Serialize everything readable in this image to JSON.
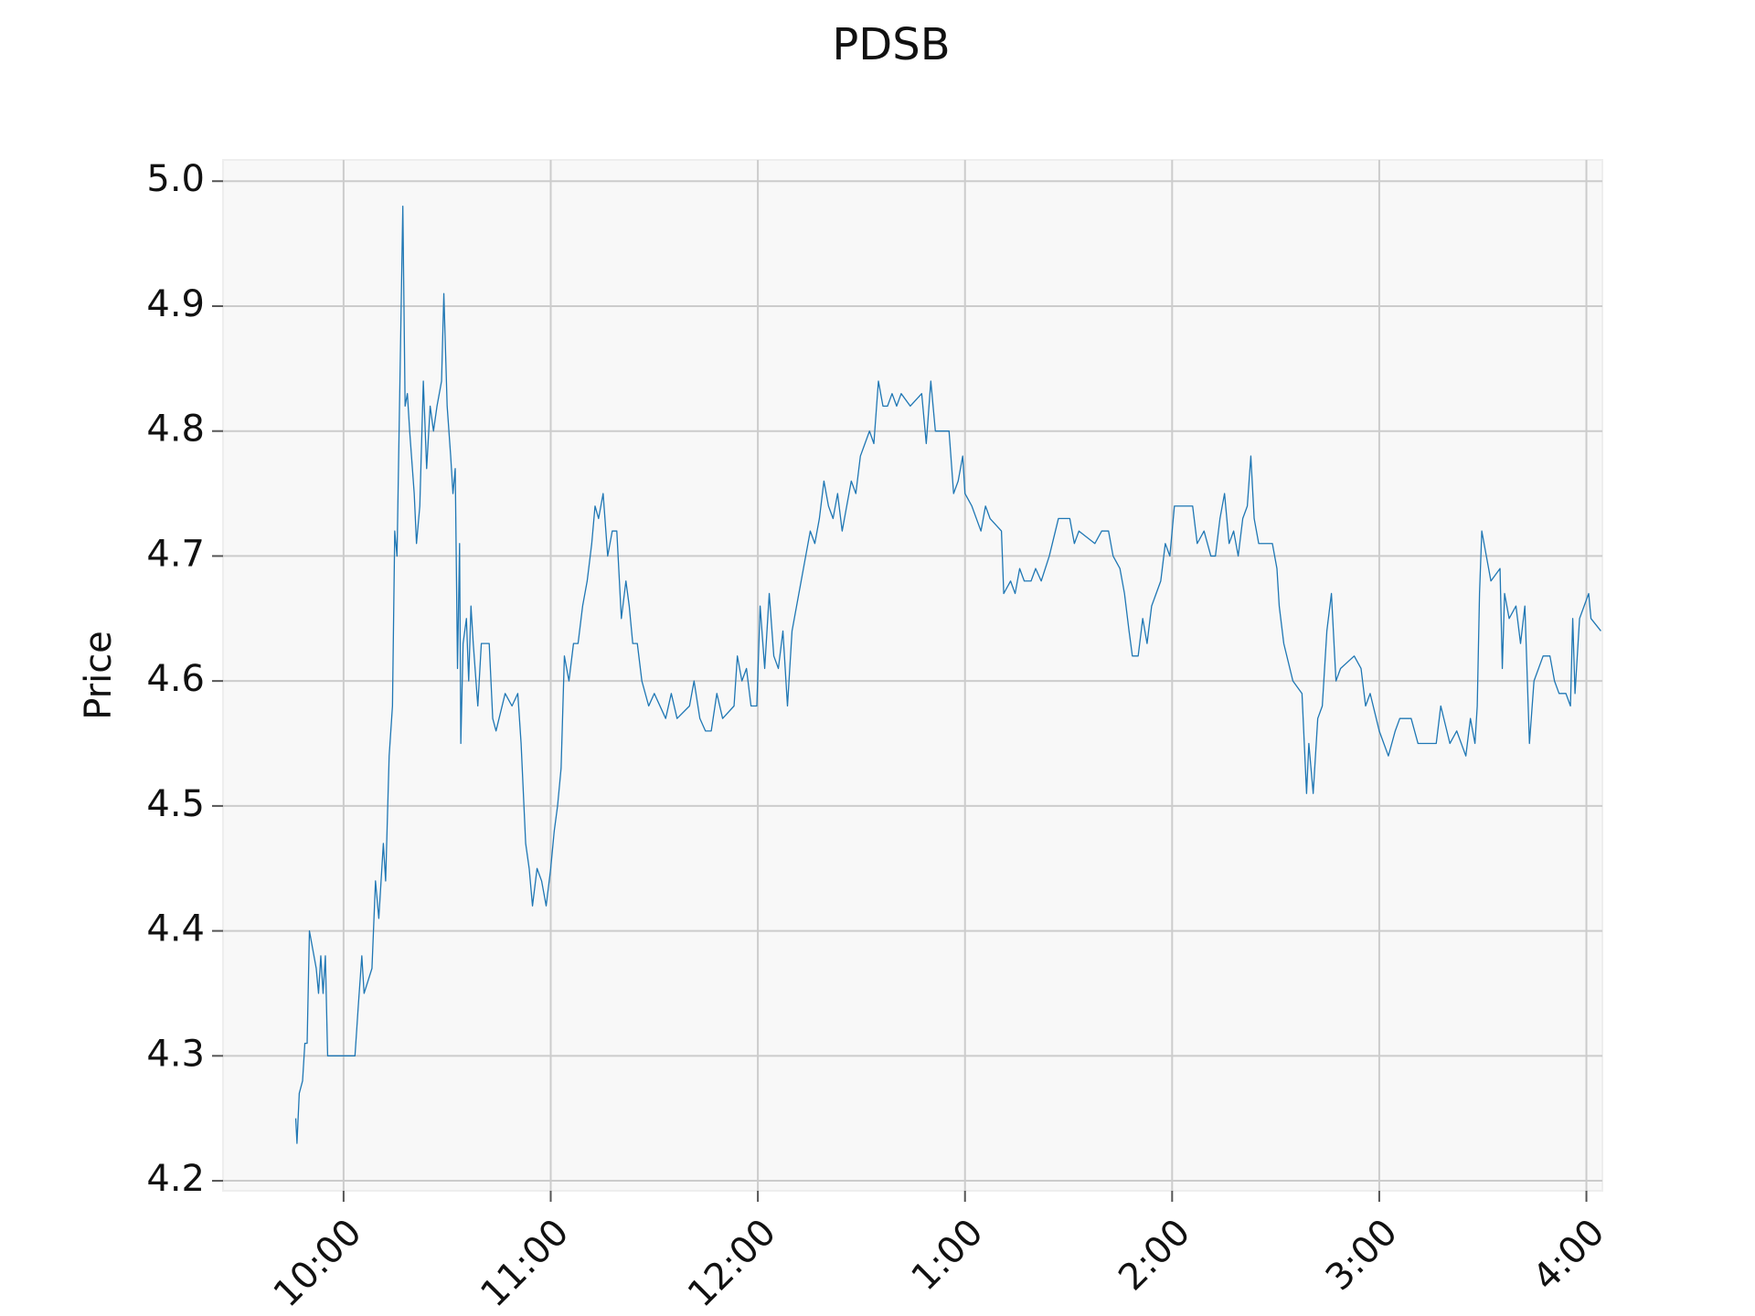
{
  "chart_data": {
    "type": "line",
    "title": "PDSB",
    "ylabel": "Price",
    "color": "#1f77b4",
    "grid": true,
    "xlim": [
      9.418,
      16.077
    ],
    "ylim": [
      4.192,
      5.017
    ],
    "xticks": [
      {
        "value": 10,
        "label": "10:00"
      },
      {
        "value": 11,
        "label": "11:00"
      },
      {
        "value": 12,
        "label": "12:00"
      },
      {
        "value": 13,
        "label": "1:00"
      },
      {
        "value": 14,
        "label": "2:00"
      },
      {
        "value": 15,
        "label": "3:00"
      },
      {
        "value": 16,
        "label": "4:00"
      }
    ],
    "yticks": [
      4.2,
      4.3,
      4.4,
      4.5,
      4.6,
      4.7,
      4.8,
      4.9,
      {
        "value": 5,
        "label": "5.0"
      }
    ],
    "x": [
      9.769,
      9.775,
      9.786,
      9.802,
      9.813,
      9.824,
      9.835,
      9.868,
      9.879,
      9.89,
      9.901,
      9.912,
      9.923,
      10.055,
      10.071,
      10.088,
      10.099,
      10.137,
      10.154,
      10.17,
      10.192,
      10.203,
      10.22,
      10.236,
      10.247,
      10.258,
      10.275,
      10.286,
      10.297,
      10.308,
      10.319,
      10.341,
      10.352,
      10.368,
      10.385,
      10.401,
      10.418,
      10.434,
      10.451,
      10.473,
      10.484,
      10.5,
      10.517,
      10.528,
      10.539,
      10.55,
      10.56,
      10.566,
      10.577,
      10.593,
      10.604,
      10.615,
      10.626,
      10.648,
      10.665,
      10.703,
      10.72,
      10.736,
      10.78,
      10.813,
      10.841,
      10.857,
      10.879,
      10.896,
      10.912,
      10.934,
      10.956,
      10.978,
      11.0,
      11.017,
      11.033,
      11.05,
      11.066,
      11.088,
      11.11,
      11.132,
      11.154,
      11.176,
      11.198,
      11.214,
      11.231,
      11.253,
      11.275,
      11.297,
      11.319,
      11.341,
      11.363,
      11.379,
      11.396,
      11.418,
      11.44,
      11.473,
      11.5,
      11.555,
      11.582,
      11.61,
      11.67,
      11.692,
      11.72,
      11.747,
      11.775,
      11.802,
      11.83,
      11.885,
      11.901,
      11.923,
      11.945,
      11.967,
      11.995,
      12.011,
      12.033,
      12.055,
      12.077,
      12.099,
      12.121,
      12.143,
      12.165,
      12.187,
      12.209,
      12.231,
      12.253,
      12.275,
      12.297,
      12.319,
      12.341,
      12.363,
      12.385,
      12.407,
      12.429,
      12.451,
      12.473,
      12.495,
      12.517,
      12.539,
      12.56,
      12.582,
      12.604,
      12.626,
      12.648,
      12.67,
      12.692,
      12.736,
      12.791,
      12.813,
      12.835,
      12.857,
      12.923,
      12.945,
      12.967,
      12.989,
      13.0,
      13.033,
      13.055,
      13.077,
      13.099,
      13.121,
      13.176,
      13.187,
      13.22,
      13.242,
      13.264,
      13.286,
      13.319,
      13.341,
      13.368,
      13.407,
      13.451,
      13.506,
      13.528,
      13.55,
      13.627,
      13.66,
      13.693,
      13.715,
      13.748,
      13.77,
      13.792,
      13.808,
      13.836,
      13.858,
      13.879,
      13.901,
      13.945,
      13.967,
      13.989,
      14.011,
      14.099,
      14.121,
      14.154,
      14.187,
      14.209,
      14.231,
      14.253,
      14.275,
      14.297,
      14.319,
      14.341,
      14.363,
      14.38,
      14.396,
      14.418,
      14.484,
      14.506,
      14.517,
      14.539,
      14.583,
      14.627,
      14.649,
      14.66,
      14.681,
      14.703,
      14.725,
      14.747,
      14.769,
      14.791,
      14.813,
      14.879,
      14.912,
      14.934,
      14.956,
      15.0,
      15.044,
      15.077,
      15.099,
      15.154,
      15.187,
      15.275,
      15.297,
      15.341,
      15.374,
      15.418,
      15.44,
      15.462,
      15.473,
      15.484,
      15.495,
      15.517,
      15.539,
      15.583,
      15.594,
      15.605,
      15.627,
      15.66,
      15.682,
      15.703,
      15.725,
      15.747,
      15.791,
      15.824,
      15.846,
      15.868,
      15.901,
      15.923,
      15.934,
      15.945,
      15.967,
      15.989,
      16.011,
      16.022,
      16.07
    ],
    "values": [
      4.25,
      4.23,
      4.27,
      4.28,
      4.31,
      4.31,
      4.4,
      4.37,
      4.35,
      4.38,
      4.35,
      4.38,
      4.3,
      4.3,
      4.34,
      4.38,
      4.35,
      4.37,
      4.44,
      4.41,
      4.47,
      4.44,
      4.54,
      4.58,
      4.72,
      4.7,
      4.87,
      4.98,
      4.82,
      4.83,
      4.8,
      4.75,
      4.71,
      4.74,
      4.84,
      4.77,
      4.82,
      4.8,
      4.82,
      4.84,
      4.91,
      4.82,
      4.78,
      4.75,
      4.77,
      4.61,
      4.71,
      4.55,
      4.63,
      4.65,
      4.6,
      4.66,
      4.63,
      4.58,
      4.63,
      4.63,
      4.57,
      4.56,
      4.59,
      4.58,
      4.59,
      4.55,
      4.47,
      4.45,
      4.42,
      4.45,
      4.44,
      4.42,
      4.45,
      4.48,
      4.5,
      4.53,
      4.62,
      4.6,
      4.63,
      4.63,
      4.66,
      4.68,
      4.71,
      4.74,
      4.73,
      4.75,
      4.7,
      4.72,
      4.72,
      4.65,
      4.68,
      4.66,
      4.63,
      4.63,
      4.6,
      4.58,
      4.59,
      4.57,
      4.59,
      4.57,
      4.58,
      4.6,
      4.57,
      4.56,
      4.56,
      4.59,
      4.57,
      4.58,
      4.62,
      4.6,
      4.61,
      4.58,
      4.58,
      4.66,
      4.61,
      4.67,
      4.62,
      4.61,
      4.64,
      4.58,
      4.64,
      4.66,
      4.68,
      4.7,
      4.72,
      4.71,
      4.73,
      4.76,
      4.74,
      4.73,
      4.75,
      4.72,
      4.74,
      4.76,
      4.75,
      4.78,
      4.79,
      4.8,
      4.79,
      4.84,
      4.82,
      4.82,
      4.83,
      4.82,
      4.83,
      4.82,
      4.83,
      4.79,
      4.84,
      4.8,
      4.8,
      4.75,
      4.76,
      4.78,
      4.75,
      4.74,
      4.73,
      4.72,
      4.74,
      4.73,
      4.72,
      4.67,
      4.68,
      4.67,
      4.69,
      4.68,
      4.68,
      4.69,
      4.68,
      4.7,
      4.73,
      4.73,
      4.71,
      4.72,
      4.71,
      4.72,
      4.72,
      4.7,
      4.69,
      4.67,
      4.64,
      4.62,
      4.62,
      4.65,
      4.63,
      4.66,
      4.68,
      4.71,
      4.7,
      4.74,
      4.74,
      4.71,
      4.72,
      4.7,
      4.7,
      4.73,
      4.75,
      4.71,
      4.72,
      4.7,
      4.73,
      4.74,
      4.78,
      4.73,
      4.71,
      4.71,
      4.69,
      4.66,
      4.63,
      4.6,
      4.59,
      4.51,
      4.55,
      4.51,
      4.57,
      4.58,
      4.64,
      4.67,
      4.6,
      4.61,
      4.62,
      4.61,
      4.58,
      4.59,
      4.56,
      4.54,
      4.56,
      4.57,
      4.57,
      4.55,
      4.55,
      4.58,
      4.55,
      4.56,
      4.54,
      4.57,
      4.55,
      4.58,
      4.67,
      4.72,
      4.7,
      4.68,
      4.69,
      4.61,
      4.67,
      4.65,
      4.66,
      4.63,
      4.66,
      4.55,
      4.6,
      4.62,
      4.62,
      4.6,
      4.59,
      4.59,
      4.58,
      4.65,
      4.59,
      4.65,
      4.66,
      4.67,
      4.65,
      4.64
    ]
  }
}
